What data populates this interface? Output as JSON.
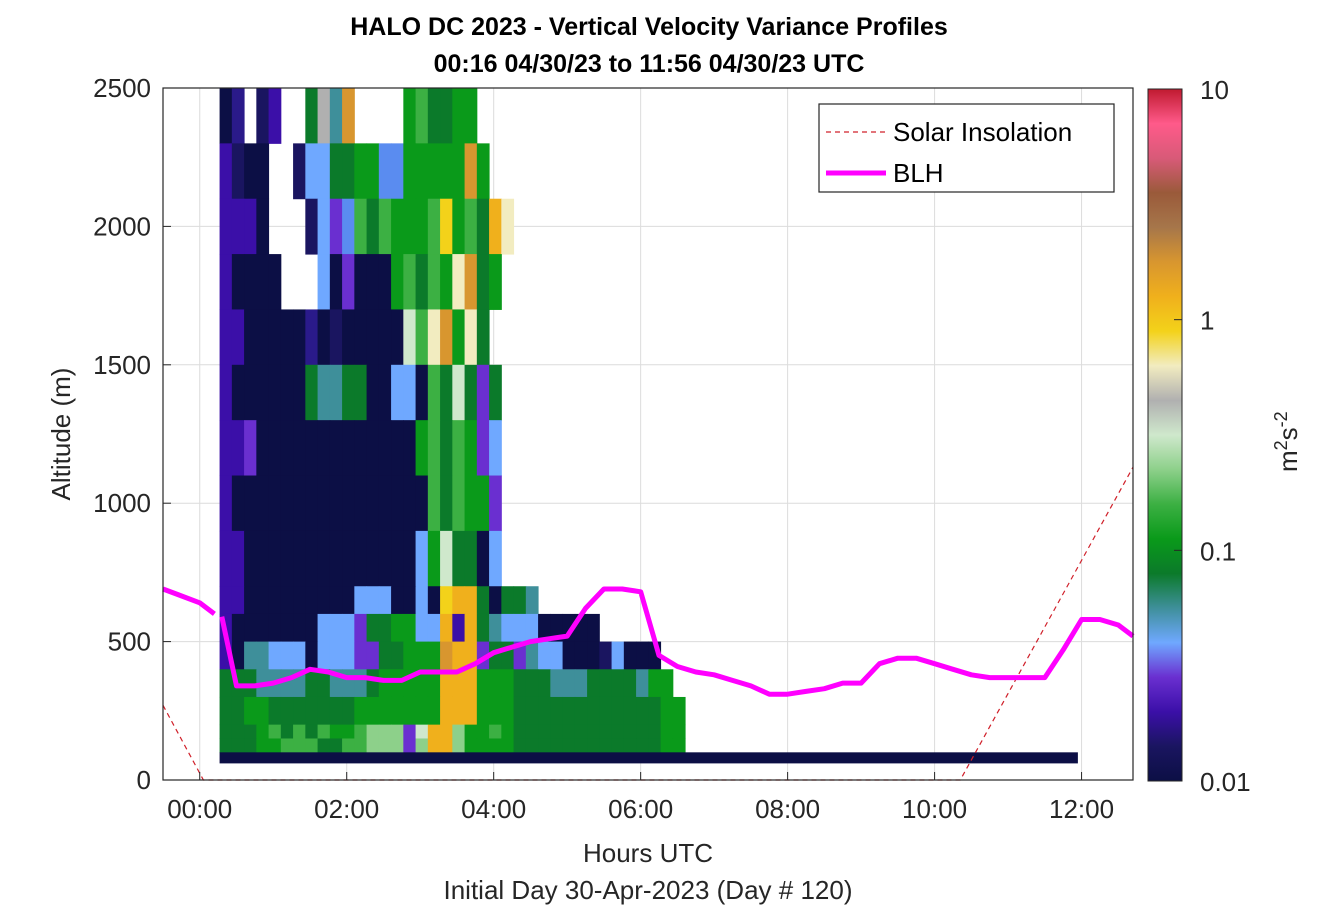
{
  "chart_data": {
    "type": "heatmap",
    "title": "HALO DC 2023 - Vertical Velocity Variance Profiles",
    "subtitle": "00:16 04/30/23 to 11:56 04/30/23  UTC",
    "xlabel": "Hours UTC",
    "xlabel2": "Initial Day 30-Apr-2023 (Day # 120)",
    "ylabel": "Altitude (m)",
    "xlim": [
      -0.5,
      12.7
    ],
    "ylim": [
      0,
      2500
    ],
    "x_ticks": [
      0,
      2,
      4,
      6,
      8,
      10,
      12
    ],
    "x_tick_labels": [
      "00:00",
      "02:00",
      "04:00",
      "06:00",
      "08:00",
      "10:00",
      "12:00"
    ],
    "y_ticks": [
      0,
      500,
      1000,
      1500,
      2000,
      2500
    ],
    "y_tick_labels": [
      "0",
      "500",
      "1000",
      "1500",
      "2000",
      "2500"
    ],
    "grid": true,
    "colorbar": {
      "label": "m²s⁻²",
      "label_base": "m",
      "label_exp1": "2",
      "label_mid": "s",
      "label_exp2": "-2",
      "scale": "log",
      "range": [
        0.01,
        10
      ],
      "ticks": [
        0.01,
        0.1,
        1,
        10
      ],
      "tick_labels": [
        "0.01",
        "0.1",
        "1",
        "10"
      ],
      "colors": [
        "#0c0f45",
        "#1a1560",
        "#3b0fa8",
        "#6a2fd0",
        "#6fa8ff",
        "#3e8f9a",
        "#0b7a2a",
        "#0a9a1a",
        "#3cb043",
        "#8dd08a",
        "#cfe8cc",
        "#b0b0b0",
        "#f2ecc0",
        "#f3d21a",
        "#f0b01c",
        "#d8962f",
        "#a6764a",
        "#9a5a3a",
        "#d85a78",
        "#ff5a8a",
        "#c01a30"
      ]
    },
    "heatmap": {
      "x_start_hour": 0.27,
      "time_step_hours": 0.1667,
      "altitude_step_m": 50,
      "lowest_gate_m": 100,
      "layers_top_down": [
        {
          "alt": 2500,
          "row": "Dbxcpxxhmgrxxxxtuhhiixxxxxxxxxxxxxxxx"
        },
        {
          "alt": 2300,
          "row": "pcddxxceehhiivvtttttrtxxxxxxxxxxxxxxxx"
        },
        {
          "alt": 2100,
          "row": "pppdxxxcefvjhjtttuotuhqwxxxxxxxxxxxxxx"
        },
        {
          "alt": 1900,
          "row": "pddddxxxedfdddtjhjtnrhtxxxxxxxxxxxxxxx"
        },
        {
          "alt": 1700,
          "row": "ppdddddbdcdddddljnrtnhxxxxxxxxxxxxxxxx"
        },
        {
          "alt": 1500,
          "row": "pddddddhgghhddeedjhlhfhxxxxxxxxxxxxxxx"
        },
        {
          "alt": 1300,
          "row": "ppfdddddddddddddijhjifexxxxxxxxxxxxxxx"
        },
        {
          "alt": 1100,
          "row": "pddddddddddddddddjhjiifxxxxxxxxxxxxxxx"
        },
        {
          "alt": 900,
          "row": "ppddddddddddddddeilhhdexxxxxxxxxxxxxxx"
        },
        {
          "alt": 700,
          "row": "ppdddddddddeeeddedoqqhdhhgxxxxxxxxxxxx"
        },
        {
          "alt": 600,
          "row": "pdddddddeeefhhiieeqpqhgeeedddddxxxxxxxx"
        },
        {
          "alt": 500,
          "row": "pdggeeedeeeffhhiiirqqfhhfgeedddcedddxxx"
        },
        {
          "alt": 400,
          "row": "hhhgggghhggghiiiiiqqqiiihhhggghhhhgiix"
        },
        {
          "alt": 300,
          "row": "hhiihhhhhhhiiiiiiiqqqiiihhhhhhhhhhhhii"
        },
        {
          "alt": 200,
          "row": "hhhijhjhjiijkkkflqqkiijihhhhhhhhhhhhii"
        },
        {
          "alt": 150,
          "row": "hhhiijjjhhjjkkkfkqqkiiiihhhhhhhhhhhhii"
        }
      ]
    },
    "series": [
      {
        "name": "Solar Insolation",
        "style": "dashed",
        "color": "#d0202a",
        "x": [
          -0.5,
          0.05,
          10.35,
          12.7
        ],
        "y": [
          270,
          0,
          0,
          1130
        ]
      },
      {
        "name": "BLH",
        "style": "solid",
        "color": "#ff00ff",
        "x": [
          -0.5,
          -0.3,
          0.0,
          0.2,
          0.3,
          0.5,
          0.75,
          1.0,
          1.25,
          1.5,
          1.75,
          2.0,
          2.25,
          2.5,
          2.75,
          3.0,
          3.25,
          3.5,
          3.75,
          4.0,
          4.25,
          4.5,
          4.75,
          5.0,
          5.25,
          5.5,
          5.75,
          6.0,
          6.25,
          6.5,
          6.75,
          7.0,
          7.25,
          7.5,
          7.75,
          8.0,
          8.25,
          8.5,
          8.75,
          9.0,
          9.25,
          9.5,
          9.75,
          10.0,
          10.25,
          10.5,
          10.75,
          11.0,
          11.25,
          11.5,
          11.75,
          12.0,
          12.25,
          12.5,
          12.7
        ],
        "y": [
          690,
          670,
          640,
          600,
          590,
          340,
          340,
          350,
          370,
          400,
          390,
          370,
          370,
          360,
          360,
          390,
          390,
          390,
          420,
          460,
          480,
          500,
          510,
          520,
          620,
          690,
          690,
          680,
          450,
          410,
          390,
          380,
          360,
          340,
          310,
          310,
          320,
          330,
          350,
          350,
          420,
          440,
          440,
          420,
          400,
          380,
          370,
          370,
          370,
          370,
          470,
          580,
          580,
          560,
          520
        ]
      }
    ],
    "legend": {
      "placement": "top-right",
      "entries": [
        "Solar Insolation",
        "BLH"
      ]
    }
  }
}
